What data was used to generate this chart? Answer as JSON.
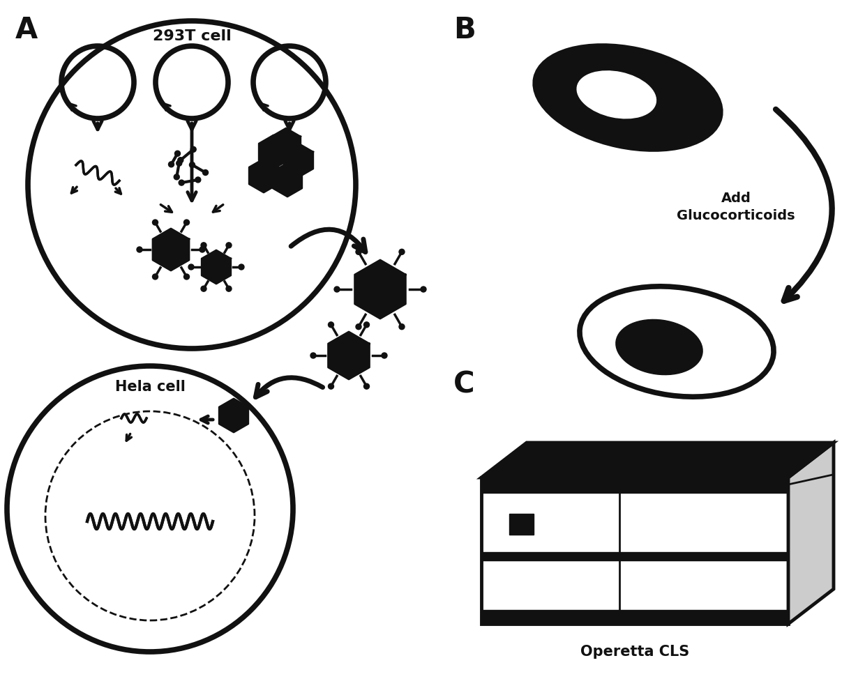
{
  "background_color": "#ffffff",
  "label_A": "A",
  "label_B": "B",
  "label_C": "C",
  "label_293T": "293T cell",
  "label_Hela": "Hela cell",
  "label_gluco": "Add\nGlucocorticoids",
  "label_operetta": "Operetta CLS",
  "figsize": [
    12.4,
    9.97
  ],
  "dpi": 100
}
